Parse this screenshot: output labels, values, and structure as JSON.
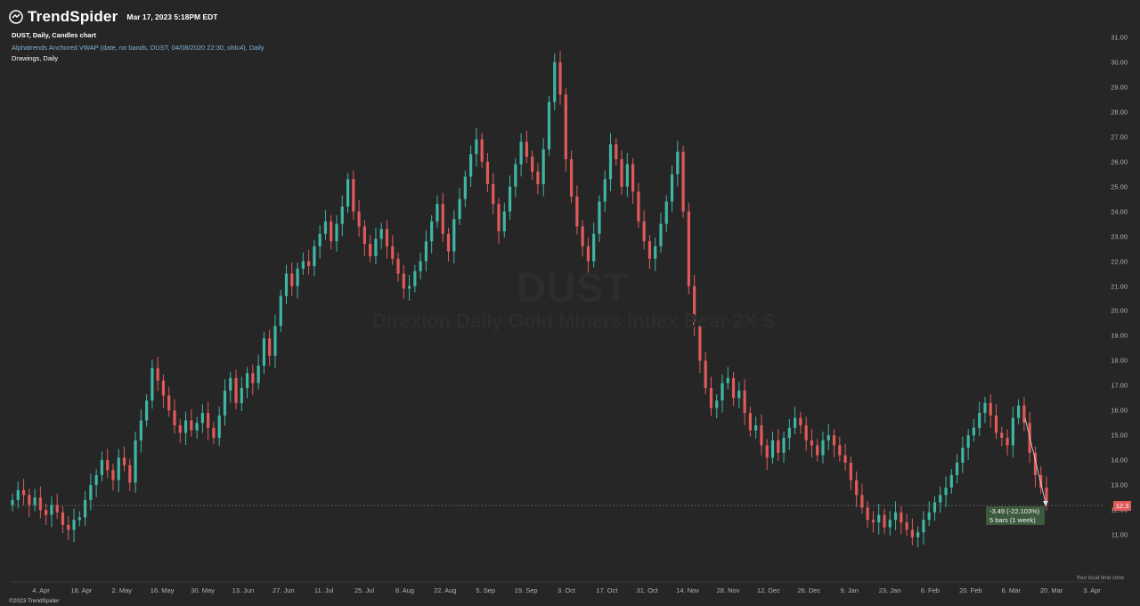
{
  "header": {
    "brand": "TrendSpider",
    "datetime": "Mar 17, 2023 5:18PM EDT",
    "chart_line": "DUST, Daily, Candles chart",
    "indicator_line": "Alphatrends Anchored VWAP (date, no bands, DUST, 04/08/2020 22:30, ohlc4), Daily",
    "drawings_line": "Drawings, Daily"
  },
  "watermark": {
    "symbol": "DUST",
    "name": "Direxion Daily Gold Miners Index Bear 2X S"
  },
  "price_tag": "12.3",
  "measurement": {
    "line1": "-3.49 (-22.103%)",
    "line2": "5 bars (1 week)"
  },
  "timezone_label": "Your local time zone",
  "copyright": "©2023 TrendSpider",
  "colors": {
    "background": "#262626",
    "up": "#3fb5a3",
    "down": "#e05a5a",
    "text": "#b0b0b0"
  },
  "chart_data": {
    "type": "candlestick",
    "symbol": "DUST",
    "interval": "Daily",
    "y_ticks": [
      "31.00",
      "30.00",
      "29.00",
      "28.00",
      "27.00",
      "26.00",
      "25.00",
      "24.00",
      "23.00",
      "22.00",
      "21.00",
      "20.00",
      "19.00",
      "18.00",
      "17.00",
      "16.00",
      "15.00",
      "14.00",
      "13.00",
      "12.00",
      "11.00"
    ],
    "x_ticks": [
      "4. Apr",
      "18. Apr",
      "2. May",
      "16. May",
      "30. May",
      "13. Jun",
      "27. Jun",
      "11. Jul",
      "25. Jul",
      "8. Aug",
      "22. Aug",
      "5. Sep",
      "19. Sep",
      "3. Oct",
      "17. Oct",
      "31. Oct",
      "14. Nov",
      "28. Nov",
      "12. Dec",
      "26. Dec",
      "9. Jan",
      "23. Jan",
      "6. Feb",
      "20. Feb",
      "6. Mar",
      "20. Mar",
      "3. Apr"
    ],
    "ylim": [
      10,
      31.5
    ],
    "current_price": 12.3,
    "closes": [
      12.4,
      12.8,
      12.6,
      12.2,
      12.5,
      12.0,
      11.8,
      12.2,
      11.9,
      11.4,
      11.2,
      11.6,
      11.7,
      12.4,
      13.0,
      13.4,
      14.0,
      13.6,
      13.2,
      14.1,
      13.8,
      13.1,
      14.8,
      15.6,
      16.4,
      17.7,
      17.2,
      16.6,
      16.0,
      15.4,
      15.1,
      15.6,
      15.2,
      15.5,
      15.9,
      15.3,
      14.9,
      15.8,
      16.8,
      17.3,
      16.3,
      16.9,
      17.5,
      17.1,
      17.8,
      18.9,
      18.2,
      19.4,
      20.6,
      21.5,
      21.0,
      21.7,
      22.0,
      21.8,
      22.6,
      23.1,
      23.6,
      22.8,
      23.5,
      24.2,
      25.3,
      24.0,
      23.4,
      22.7,
      22.2,
      22.9,
      23.3,
      22.6,
      22.1,
      21.5,
      20.9,
      21.0,
      21.6,
      22.0,
      22.8,
      23.6,
      24.3,
      23.1,
      22.4,
      23.7,
      24.5,
      25.4,
      26.3,
      26.9,
      26.0,
      25.1,
      24.3,
      23.2,
      24.0,
      25.0,
      25.9,
      26.8,
      26.2,
      25.6,
      25.1,
      26.5,
      28.4,
      30.0,
      28.7,
      26.1,
      24.6,
      23.4,
      22.6,
      22.0,
      23.1,
      24.4,
      25.3,
      26.7,
      26.1,
      25.0,
      25.9,
      24.8,
      23.6,
      22.8,
      22.1,
      22.6,
      23.5,
      24.4,
      25.5,
      26.4,
      24.0,
      21.0,
      19.4,
      18.0,
      16.9,
      16.1,
      16.4,
      17.1,
      17.3,
      16.5,
      16.8,
      15.9,
      15.2,
      15.4,
      14.6,
      14.1,
      14.8,
      14.3,
      14.9,
      15.3,
      15.7,
      15.4,
      14.8,
      14.6,
      14.2,
      14.8,
      15.0,
      14.6,
      14.2,
      13.9,
      13.2,
      12.6,
      12.1,
      11.6,
      11.5,
      11.8,
      11.3,
      11.6,
      11.9,
      11.5,
      11.2,
      10.9,
      11.1,
      11.6,
      11.9,
      12.3,
      12.6,
      12.9,
      13.4,
      13.9,
      14.5,
      15.0,
      15.3,
      15.9,
      16.3,
      15.8,
      15.1,
      14.9,
      14.6,
      15.7,
      16.2,
      15.5,
      14.3,
      13.4,
      12.9,
      12.3
    ]
  }
}
